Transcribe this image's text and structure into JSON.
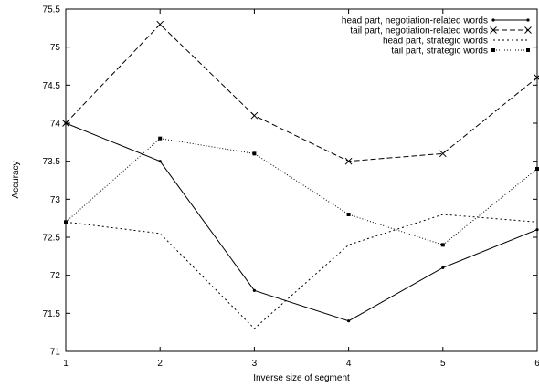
{
  "chart_data": {
    "type": "line",
    "title": "",
    "xlabel": "Inverse size of segment",
    "ylabel": "Accuracy",
    "x": [
      1,
      2,
      3,
      4,
      5,
      6
    ],
    "xlim": [
      1,
      6
    ],
    "ylim": [
      71,
      75.5
    ],
    "xticks": [
      "1",
      "2",
      "3",
      "4",
      "5",
      "6"
    ],
    "yticks": [
      "71",
      "71.5",
      "72",
      "72.5",
      "73",
      "73.5",
      "74",
      "74.5",
      "75",
      "75.5"
    ],
    "grid": false,
    "legend_position": "top-right",
    "series": [
      {
        "name": "head part, negotiation-related words",
        "values": [
          74.0,
          73.5,
          71.8,
          71.4,
          72.1,
          72.6
        ],
        "dash": "solid",
        "marker": "dot"
      },
      {
        "name": "tail part, negotiation-related words",
        "values": [
          74.0,
          75.3,
          74.1,
          73.5,
          73.6,
          74.6
        ],
        "dash": "dashed",
        "marker": "cross"
      },
      {
        "name": "head part, strategic words",
        "values": [
          72.7,
          72.55,
          71.3,
          72.4,
          72.8,
          72.7
        ],
        "dash": "dotted",
        "marker": "none"
      },
      {
        "name": "tail part, strategic words",
        "values": [
          72.7,
          73.8,
          73.6,
          72.8,
          72.4,
          73.4
        ],
        "dash": "finedot",
        "marker": "square"
      }
    ]
  }
}
